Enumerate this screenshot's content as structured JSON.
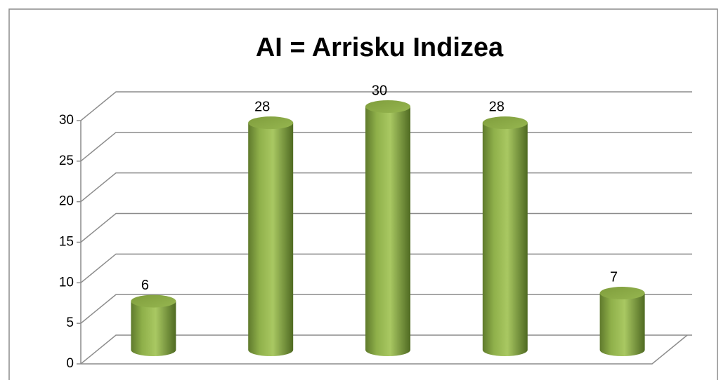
{
  "chart_data": {
    "type": "bar",
    "title": "AI = Arrisku Indizea",
    "categories": [
      null,
      null,
      null,
      null,
      null
    ],
    "values": [
      6,
      28,
      30,
      28,
      7
    ],
    "color": "#9bbb59",
    "ylim": [
      0,
      30
    ],
    "yticks": [
      0,
      5,
      10,
      15,
      20,
      25,
      30
    ],
    "grid": true
  }
}
